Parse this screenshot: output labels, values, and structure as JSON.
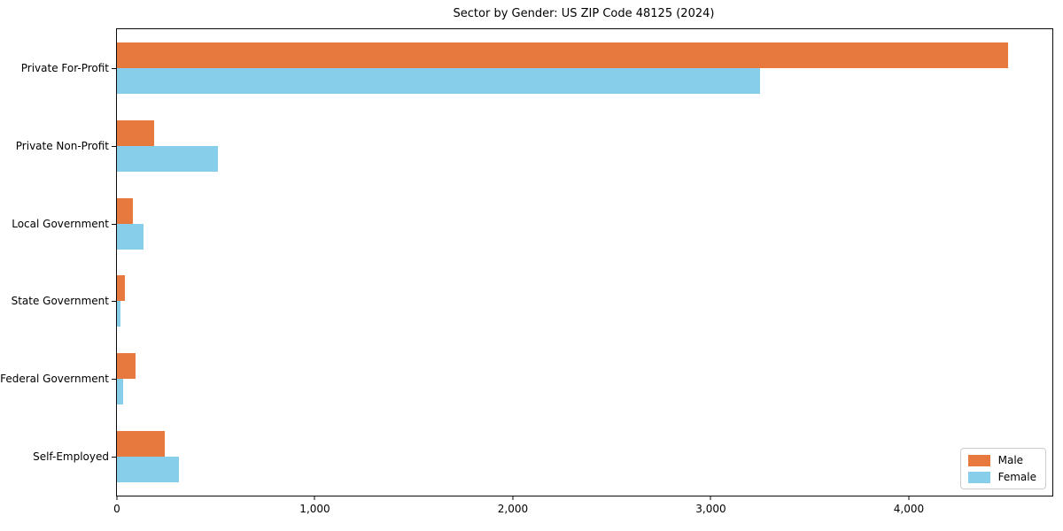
{
  "chart_data": {
    "type": "bar",
    "orientation": "horizontal",
    "title": "Sector by Gender: US ZIP Code 48125 (2024)",
    "categories": [
      "Private For-Profit",
      "Private Non-Profit",
      "Local Government",
      "State Government",
      "Federal Government",
      "Self-Employed"
    ],
    "series": [
      {
        "name": "Male",
        "color": "#e8793e",
        "values": [
          4500,
          190,
          80,
          40,
          95,
          240
        ]
      },
      {
        "name": "Female",
        "color": "#87ceeb",
        "values": [
          3250,
          510,
          135,
          20,
          30,
          315
        ]
      }
    ],
    "xlabel": "",
    "ylabel": "",
    "xlim": [
      0,
      4725
    ],
    "xticks": [
      0,
      1000,
      2000,
      3000,
      4000
    ],
    "xtick_labels": [
      "0",
      "1,000",
      "2,000",
      "3,000",
      "4,000"
    ],
    "grid": false,
    "legend_position": "lower right",
    "frame": true
  }
}
